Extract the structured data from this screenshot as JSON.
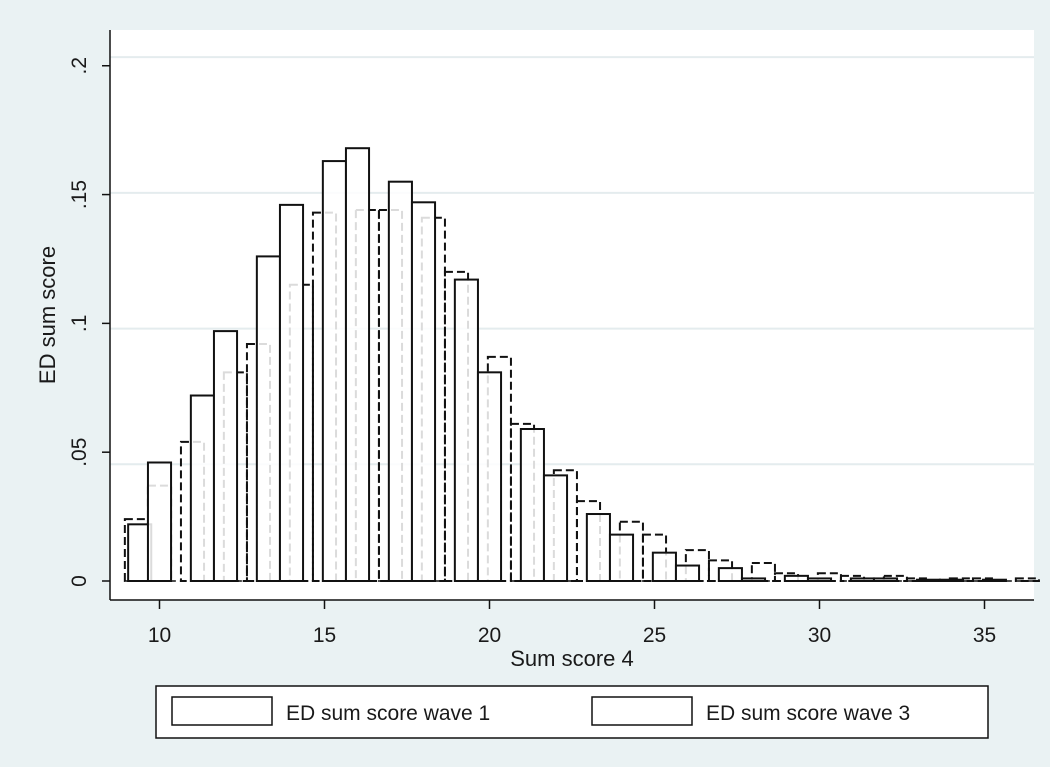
{
  "chart_data": {
    "type": "bar",
    "xlabel": "Sum score 4",
    "ylabel": "ED sum score",
    "xlim": [
      8.5,
      36.5
    ],
    "ylim": [
      0,
      0.21
    ],
    "xticks": [
      10,
      15,
      20,
      25,
      30,
      35
    ],
    "xtick_labels": [
      "10",
      "15",
      "20",
      "25",
      "30",
      "35"
    ],
    "yticks": [
      0,
      0.05,
      0.1,
      0.15,
      0.2
    ],
    "ytick_labels": [
      "0",
      ".05",
      ".1",
      ".15",
      ".2"
    ],
    "grid": true,
    "legend_position": "bottom",
    "series": [
      {
        "name": "ED sum score wave 1",
        "style": "solid",
        "color": "#111111",
        "points": [
          {
            "x": 9.4,
            "y": 0.022
          },
          {
            "x": 10.0,
            "y": 0.046
          },
          {
            "x": 11.3,
            "y": 0.072
          },
          {
            "x": 12.0,
            "y": 0.097
          },
          {
            "x": 13.3,
            "y": 0.126
          },
          {
            "x": 14.0,
            "y": 0.146
          },
          {
            "x": 15.3,
            "y": 0.163
          },
          {
            "x": 16.0,
            "y": 0.168
          },
          {
            "x": 17.3,
            "y": 0.155
          },
          {
            "x": 18.0,
            "y": 0.147
          },
          {
            "x": 19.3,
            "y": 0.117
          },
          {
            "x": 20.0,
            "y": 0.081
          },
          {
            "x": 21.3,
            "y": 0.059
          },
          {
            "x": 22.0,
            "y": 0.041
          },
          {
            "x": 23.3,
            "y": 0.026
          },
          {
            "x": 24.0,
            "y": 0.018
          },
          {
            "x": 25.3,
            "y": 0.011
          },
          {
            "x": 26.0,
            "y": 0.006
          },
          {
            "x": 27.3,
            "y": 0.005
          },
          {
            "x": 28.0,
            "y": 0.001
          },
          {
            "x": 29.3,
            "y": 0.002
          },
          {
            "x": 30.0,
            "y": 0.001
          },
          {
            "x": 31.3,
            "y": 0.001
          },
          {
            "x": 32.0,
            "y": 0.001
          },
          {
            "x": 33.3,
            "y": 0.0005
          },
          {
            "x": 34.0,
            "y": 0.0005
          },
          {
            "x": 35.3,
            "y": 0.0005
          }
        ]
      },
      {
        "name": "ED sum score wave 3",
        "style": "dashed",
        "color": "#111111",
        "points": [
          {
            "x": 9.3,
            "y": 0.024
          },
          {
            "x": 10.0,
            "y": 0.037
          },
          {
            "x": 11.0,
            "y": 0.054
          },
          {
            "x": 12.3,
            "y": 0.081
          },
          {
            "x": 13.0,
            "y": 0.092
          },
          {
            "x": 14.3,
            "y": 0.115
          },
          {
            "x": 15.0,
            "y": 0.143
          },
          {
            "x": 16.3,
            "y": 0.144
          },
          {
            "x": 17.0,
            "y": 0.144
          },
          {
            "x": 18.3,
            "y": 0.141
          },
          {
            "x": 19.0,
            "y": 0.12
          },
          {
            "x": 20.3,
            "y": 0.087
          },
          {
            "x": 21.0,
            "y": 0.061
          },
          {
            "x": 22.3,
            "y": 0.043
          },
          {
            "x": 23.0,
            "y": 0.031
          },
          {
            "x": 24.3,
            "y": 0.023
          },
          {
            "x": 25.0,
            "y": 0.018
          },
          {
            "x": 26.3,
            "y": 0.012
          },
          {
            "x": 27.0,
            "y": 0.008
          },
          {
            "x": 28.3,
            "y": 0.007
          },
          {
            "x": 29.0,
            "y": 0.003
          },
          {
            "x": 30.3,
            "y": 0.003
          },
          {
            "x": 31.0,
            "y": 0.002
          },
          {
            "x": 32.3,
            "y": 0.002
          },
          {
            "x": 33.0,
            "y": 0.001
          },
          {
            "x": 34.3,
            "y": 0.001
          },
          {
            "x": 35.0,
            "y": 0.001
          },
          {
            "x": 36.3,
            "y": 0.001
          }
        ]
      }
    ]
  }
}
